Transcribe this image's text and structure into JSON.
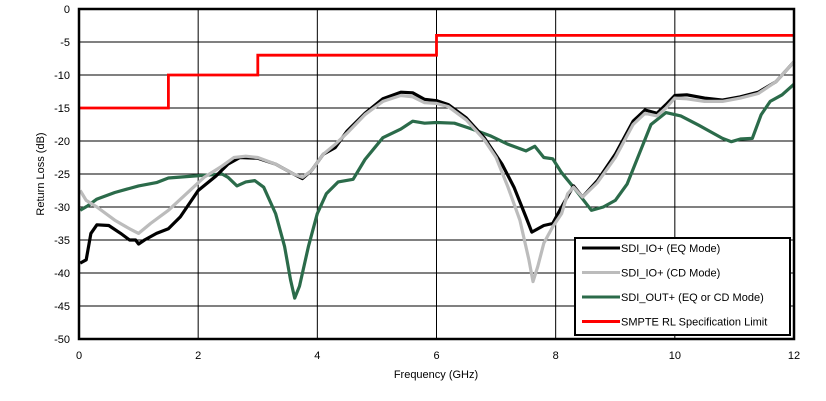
{
  "chart_data": {
    "type": "line",
    "title": "",
    "xlabel": "Frequency (GHz)",
    "ylabel": "Return Loss (dB)",
    "xlim": [
      0,
      12
    ],
    "ylim": [
      -50,
      0
    ],
    "xticks": [
      0,
      2,
      4,
      6,
      8,
      10,
      12
    ],
    "yticks": [
      0,
      -5,
      -10,
      -15,
      -20,
      -25,
      -30,
      -35,
      -40,
      -45,
      -50
    ],
    "grid": true,
    "legend_position": "lower right",
    "series": [
      {
        "name": "SDI_IO+ (EQ Mode)",
        "color": "#000000",
        "points": [
          [
            0.02,
            -38.5
          ],
          [
            0.12,
            -38
          ],
          [
            0.2,
            -34
          ],
          [
            0.3,
            -32.7
          ],
          [
            0.5,
            -32.8
          ],
          [
            0.7,
            -34
          ],
          [
            0.85,
            -35
          ],
          [
            0.95,
            -35
          ],
          [
            1.0,
            -35.6
          ],
          [
            1.1,
            -35
          ],
          [
            1.3,
            -34
          ],
          [
            1.5,
            -33.3
          ],
          [
            1.7,
            -31.5
          ],
          [
            2.0,
            -27.5
          ],
          [
            2.3,
            -25.3
          ],
          [
            2.5,
            -23.5
          ],
          [
            2.7,
            -22.5
          ],
          [
            3.0,
            -22.6
          ],
          [
            3.3,
            -23.5
          ],
          [
            3.6,
            -25
          ],
          [
            3.75,
            -25.7
          ],
          [
            3.9,
            -24.5
          ],
          [
            4.1,
            -22
          ],
          [
            4.3,
            -21
          ],
          [
            4.5,
            -18.5
          ],
          [
            4.8,
            -15.8
          ],
          [
            5.1,
            -13.6
          ],
          [
            5.4,
            -12.6
          ],
          [
            5.6,
            -12.7
          ],
          [
            5.8,
            -13.7
          ],
          [
            6.0,
            -13.9
          ],
          [
            6.2,
            -14.5
          ],
          [
            6.5,
            -16.5
          ],
          [
            6.8,
            -19.5
          ],
          [
            7.1,
            -23.5
          ],
          [
            7.3,
            -27
          ],
          [
            7.5,
            -31.5
          ],
          [
            7.6,
            -33.8
          ],
          [
            7.8,
            -32.8
          ],
          [
            7.95,
            -32.5
          ],
          [
            8.1,
            -30
          ],
          [
            8.3,
            -26.8
          ],
          [
            8.45,
            -28.5
          ],
          [
            8.7,
            -26
          ],
          [
            9.0,
            -22
          ],
          [
            9.3,
            -17
          ],
          [
            9.5,
            -15.3
          ],
          [
            9.7,
            -15.8
          ],
          [
            9.85,
            -14.5
          ],
          [
            10.0,
            -13.1
          ],
          [
            10.2,
            -13
          ],
          [
            10.5,
            -13.5
          ],
          [
            10.8,
            -13.8
          ],
          [
            11.1,
            -13.3
          ],
          [
            11.4,
            -12.6
          ],
          [
            11.7,
            -11
          ],
          [
            12.0,
            -8
          ]
        ]
      },
      {
        "name": "SDI_IO+ (CD Mode)",
        "color": "#bcbcbc",
        "points": [
          [
            0.02,
            -27.5
          ],
          [
            0.12,
            -29
          ],
          [
            0.3,
            -30
          ],
          [
            0.6,
            -32
          ],
          [
            0.85,
            -33.3
          ],
          [
            1.0,
            -34
          ],
          [
            1.2,
            -32.5
          ],
          [
            1.5,
            -30.5
          ],
          [
            1.8,
            -28
          ],
          [
            2.1,
            -25.5
          ],
          [
            2.4,
            -23.8
          ],
          [
            2.6,
            -22.5
          ],
          [
            2.8,
            -22.3
          ],
          [
            3.0,
            -22.5
          ],
          [
            3.3,
            -23.5
          ],
          [
            3.6,
            -25
          ],
          [
            3.75,
            -25.5
          ],
          [
            3.9,
            -24.5
          ],
          [
            4.1,
            -22
          ],
          [
            4.3,
            -20.5
          ],
          [
            4.5,
            -18.8
          ],
          [
            4.8,
            -16
          ],
          [
            5.1,
            -14
          ],
          [
            5.4,
            -13.1
          ],
          [
            5.6,
            -13.3
          ],
          [
            5.8,
            -14.2
          ],
          [
            6.0,
            -14.3
          ],
          [
            6.2,
            -14.8
          ],
          [
            6.5,
            -16.8
          ],
          [
            6.8,
            -19.8
          ],
          [
            7.0,
            -22.5
          ],
          [
            7.2,
            -27
          ],
          [
            7.4,
            -32
          ],
          [
            7.55,
            -38
          ],
          [
            7.62,
            -41.3
          ],
          [
            7.7,
            -39
          ],
          [
            7.8,
            -35.5
          ],
          [
            7.95,
            -33
          ],
          [
            8.1,
            -31
          ],
          [
            8.2,
            -28
          ],
          [
            8.3,
            -27
          ],
          [
            8.45,
            -28.5
          ],
          [
            8.7,
            -26.3
          ],
          [
            9.0,
            -22.5
          ],
          [
            9.3,
            -17.5
          ],
          [
            9.5,
            -15.8
          ],
          [
            9.7,
            -16.2
          ],
          [
            9.85,
            -15
          ],
          [
            10.0,
            -13.5
          ],
          [
            10.2,
            -13.6
          ],
          [
            10.5,
            -14
          ],
          [
            10.8,
            -14
          ],
          [
            11.1,
            -13.5
          ],
          [
            11.4,
            -12.8
          ],
          [
            11.7,
            -11
          ],
          [
            12.0,
            -8
          ]
        ]
      },
      {
        "name": "SDI_OUT+ (EQ or CD Mode)",
        "color": "#2b6b4a",
        "points": [
          [
            0.02,
            -30.5
          ],
          [
            0.15,
            -29.8
          ],
          [
            0.3,
            -28.8
          ],
          [
            0.6,
            -27.8
          ],
          [
            1.0,
            -26.8
          ],
          [
            1.3,
            -26.3
          ],
          [
            1.5,
            -25.6
          ],
          [
            1.8,
            -25.4
          ],
          [
            2.1,
            -25.2
          ],
          [
            2.4,
            -25
          ],
          [
            2.5,
            -25.5
          ],
          [
            2.65,
            -26.8
          ],
          [
            2.8,
            -26.2
          ],
          [
            2.95,
            -26
          ],
          [
            3.1,
            -27
          ],
          [
            3.3,
            -31
          ],
          [
            3.45,
            -36
          ],
          [
            3.55,
            -41
          ],
          [
            3.62,
            -43.8
          ],
          [
            3.7,
            -42
          ],
          [
            3.85,
            -36
          ],
          [
            4.0,
            -31
          ],
          [
            4.15,
            -28
          ],
          [
            4.35,
            -26.2
          ],
          [
            4.6,
            -25.8
          ],
          [
            4.8,
            -22.8
          ],
          [
            5.1,
            -19.5
          ],
          [
            5.4,
            -18.2
          ],
          [
            5.6,
            -17
          ],
          [
            5.8,
            -17.3
          ],
          [
            6.0,
            -17.2
          ],
          [
            6.3,
            -17.3
          ],
          [
            6.6,
            -18.2
          ],
          [
            6.9,
            -19.2
          ],
          [
            7.2,
            -20.5
          ],
          [
            7.5,
            -21.5
          ],
          [
            7.65,
            -20.8
          ],
          [
            7.8,
            -22.5
          ],
          [
            7.95,
            -22.7
          ],
          [
            8.1,
            -24.8
          ],
          [
            8.3,
            -27
          ],
          [
            8.6,
            -30.5
          ],
          [
            8.8,
            -30
          ],
          [
            9.0,
            -29
          ],
          [
            9.2,
            -26.5
          ],
          [
            9.4,
            -22
          ],
          [
            9.6,
            -17.5
          ],
          [
            9.85,
            -15.7
          ],
          [
            10.1,
            -16.2
          ],
          [
            10.4,
            -17.6
          ],
          [
            10.8,
            -19.6
          ],
          [
            10.95,
            -20.1
          ],
          [
            11.1,
            -19.7
          ],
          [
            11.3,
            -19.6
          ],
          [
            11.45,
            -16
          ],
          [
            11.6,
            -14
          ],
          [
            11.8,
            -13
          ],
          [
            12.0,
            -11.4
          ]
        ]
      },
      {
        "name": "SMPTE RL Specification Limit",
        "color": "#ff0000",
        "points": [
          [
            0,
            -15
          ],
          [
            1.5,
            -15
          ],
          [
            1.5,
            -10
          ],
          [
            3,
            -10
          ],
          [
            3,
            -7
          ],
          [
            6,
            -7
          ],
          [
            6,
            -4
          ],
          [
            12,
            -4
          ]
        ]
      }
    ]
  },
  "axes": {
    "xlabel": "Frequency (GHz)",
    "ylabel": "Return Loss (dB)",
    "xtick_labels": [
      "0",
      "2",
      "4",
      "6",
      "8",
      "10",
      "12"
    ],
    "ytick_labels": [
      "0",
      "-5",
      "-10",
      "-15",
      "-20",
      "-25",
      "-30",
      "-35",
      "-40",
      "-45",
      "-50"
    ]
  },
  "legend": {
    "items": [
      {
        "label": "SDI_IO+ (EQ Mode)",
        "color": "#000000"
      },
      {
        "label": "SDI_IO+ (CD Mode)",
        "color": "#bcbcbc"
      },
      {
        "label": "SDI_OUT+ (EQ or CD Mode)",
        "color": "#2b6b4a"
      },
      {
        "label": "SMPTE RL Specification Limit",
        "color": "#ff0000"
      }
    ]
  }
}
